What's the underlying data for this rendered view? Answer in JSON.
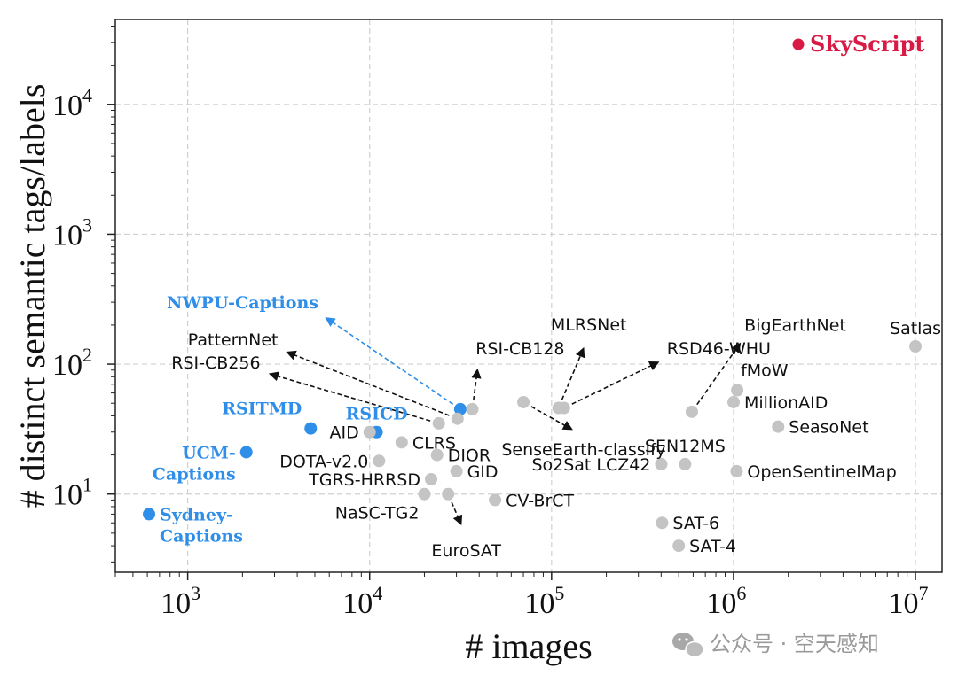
{
  "chart_data": {
    "type": "scatter",
    "xlabel": "# images",
    "ylabel": "# distinct semantic tags/labels",
    "xscale": "log",
    "yscale": "log",
    "xlim": [
      400,
      14000000
    ],
    "ylim": [
      2.5,
      45000
    ],
    "grid": true,
    "x_ticks": [
      {
        "value": 1000,
        "base": "10",
        "exp": "3"
      },
      {
        "value": 10000,
        "base": "10",
        "exp": "4"
      },
      {
        "value": 100000,
        "base": "10",
        "exp": "5"
      },
      {
        "value": 1000000,
        "base": "10",
        "exp": "6"
      },
      {
        "value": 10000000,
        "base": "10",
        "exp": "7"
      }
    ],
    "y_ticks": [
      {
        "value": 10,
        "base": "10",
        "exp": "1"
      },
      {
        "value": 100,
        "base": "10",
        "exp": "2"
      },
      {
        "value": 1000,
        "base": "10",
        "exp": "3"
      },
      {
        "value": 10000,
        "base": "10",
        "exp": "4"
      }
    ],
    "legend": {
      "label": "SkyScript",
      "color": "#d81b45",
      "position": "top-right"
    },
    "colors": {
      "gray": "#c4c4c4",
      "highlight": "#2e8ee8",
      "skyscript": "#d81b45"
    },
    "points": [
      {
        "name": "Sydney-Captions",
        "lines": [
          "Sydney-",
          "Captions"
        ],
        "x": 613,
        "y": 7,
        "group": "highlight",
        "label_pos": "right"
      },
      {
        "name": "UCM-Captions",
        "lines": [
          "UCM-",
          "Captions"
        ],
        "x": 2100,
        "y": 21,
        "group": "highlight",
        "label_pos": "left"
      },
      {
        "name": "RSITMD",
        "lines": [
          "RSITMD"
        ],
        "x": 4743,
        "y": 32,
        "group": "highlight",
        "label_pos": "above-left"
      },
      {
        "name": "RSICD",
        "lines": [
          "RSICD"
        ],
        "x": 10921,
        "y": 30,
        "group": "highlight",
        "label_pos": "above"
      },
      {
        "name": "NWPU-Captions",
        "lines": [
          "NWPU-Captions"
        ],
        "x": 31500,
        "y": 45,
        "group": "highlight",
        "label_pos": "arrow-up-left",
        "label_at": [
          5000,
          260
        ]
      },
      {
        "name": "AID",
        "lines": [
          "AID"
        ],
        "x": 10000,
        "y": 30,
        "group": "gray",
        "label_pos": "left"
      },
      {
        "name": "PatternNet",
        "lines": [
          "PatternNet"
        ],
        "x": 30400,
        "y": 38,
        "group": "gray",
        "label_pos": "arrow-up-left",
        "label_at": [
          3000,
          135
        ]
      },
      {
        "name": "RSI-CB256",
        "lines": [
          "RSI-CB256"
        ],
        "x": 24000,
        "y": 35,
        "group": "gray",
        "label_pos": "arrow-up-left",
        "label_at": [
          2400,
          90
        ]
      },
      {
        "name": "RSI-CB128",
        "lines": [
          "RSI-CB128"
        ],
        "x": 36700,
        "y": 45,
        "group": "gray",
        "label_pos": "arrow-up-right",
        "label_at": [
          40000,
          115
        ]
      },
      {
        "name": "CLRS",
        "lines": [
          "CLRS"
        ],
        "x": 15000,
        "y": 25,
        "group": "gray",
        "label_pos": "right"
      },
      {
        "name": "DOTA-v2.0",
        "lines": [
          "DOTA-v2.0"
        ],
        "x": 11268,
        "y": 18,
        "group": "gray",
        "label_pos": "left"
      },
      {
        "name": "DIOR",
        "lines": [
          "DIOR"
        ],
        "x": 23463,
        "y": 20,
        "group": "gray",
        "label_pos": "right"
      },
      {
        "name": "TGRS-HRRSD",
        "lines": [
          "TGRS-HRRSD"
        ],
        "x": 21761,
        "y": 13,
        "group": "gray",
        "label_pos": "left"
      },
      {
        "name": "GID",
        "lines": [
          "GID"
        ],
        "x": 30000,
        "y": 15,
        "group": "gray",
        "label_pos": "right"
      },
      {
        "name": "NaSC-TG2",
        "lines": [
          "NaSC-TG2"
        ],
        "x": 20000,
        "y": 10,
        "group": "gray",
        "label_pos": "below-left"
      },
      {
        "name": "EuroSAT",
        "lines": [
          "EuroSAT"
        ],
        "x": 27000,
        "y": 10,
        "group": "gray",
        "label_pos": "arrow-down",
        "label_at": [
          34000,
          4.7
        ]
      },
      {
        "name": "CV-BrCT",
        "lines": [
          "CV-BrCT"
        ],
        "x": 48900,
        "y": 9,
        "group": "gray",
        "label_pos": "right"
      },
      {
        "name": "SenseEarth-classify",
        "lines": [
          "SenseEarth-classify"
        ],
        "x": 70000,
        "y": 51,
        "group": "gray",
        "label_pos": "arrow-down-right",
        "label_at": [
          150000,
          28
        ]
      },
      {
        "name": "MLRSNet",
        "lines": [
          "MLRSNet"
        ],
        "x": 109161,
        "y": 46,
        "group": "gray",
        "label_pos": "arrow-up",
        "label_at": [
          160000,
          165
        ]
      },
      {
        "name": "RSD46-WHU",
        "lines": [
          "RSD46-WHU"
        ],
        "x": 117000,
        "y": 46,
        "group": "gray",
        "label_pos": "arrow-up-right",
        "label_at": [
          450000,
          115
        ]
      },
      {
        "name": "So2Sat LCZ42",
        "lines": [
          "So2Sat LCZ42"
        ],
        "x": 400673,
        "y": 17,
        "group": "gray",
        "label_pos": "left"
      },
      {
        "name": "SEN12MS",
        "lines": [
          "SEN12MS"
        ],
        "x": 541986,
        "y": 17,
        "group": "gray",
        "label_pos": "above"
      },
      {
        "name": "BigEarthNet",
        "lines": [
          "BigEarthNet"
        ],
        "x": 590326,
        "y": 43,
        "group": "gray",
        "label_pos": "arrow-up-right",
        "label_at": [
          1200000,
          175
        ]
      },
      {
        "name": "SAT-6",
        "lines": [
          "SAT-6"
        ],
        "x": 405000,
        "y": 6,
        "group": "gray",
        "label_pos": "right"
      },
      {
        "name": "SAT-4",
        "lines": [
          "SAT-4"
        ],
        "x": 500000,
        "y": 4,
        "group": "gray",
        "label_pos": "right"
      },
      {
        "name": "fMoW",
        "lines": [
          "fMoW"
        ],
        "x": 1047691,
        "y": 63,
        "group": "gray",
        "label_pos": "above-right"
      },
      {
        "name": "MillionAID",
        "lines": [
          "MillionAID"
        ],
        "x": 1000848,
        "y": 51,
        "group": "gray",
        "label_pos": "right"
      },
      {
        "name": "SeasoNet",
        "lines": [
          "SeasoNet"
        ],
        "x": 1759830,
        "y": 33,
        "group": "gray",
        "label_pos": "right"
      },
      {
        "name": "OpenSentinelMap",
        "lines": [
          "OpenSentinelMap"
        ],
        "x": 1040000,
        "y": 15,
        "group": "gray",
        "label_pos": "right"
      },
      {
        "name": "Satlas",
        "lines": [
          "Satlas"
        ],
        "x": 10000000,
        "y": 137,
        "group": "gray",
        "label_pos": "above"
      }
    ]
  },
  "watermark": {
    "icon": "wechat-icon",
    "text": "公众号 · 空天感知"
  }
}
